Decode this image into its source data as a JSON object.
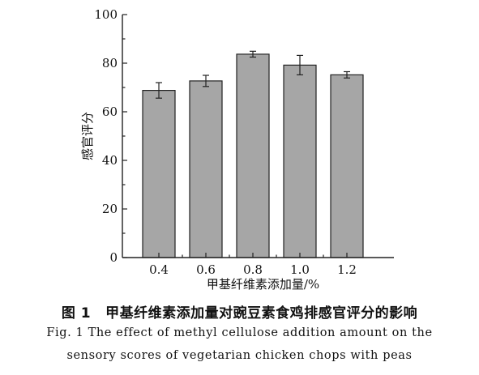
{
  "chart_data": {
    "type": "bar",
    "categories": [
      "0.4",
      "0.6",
      "0.8",
      "1.0",
      "1.2"
    ],
    "values": [
      68.8,
      72.7,
      83.7,
      79.2,
      75.2
    ],
    "errors": [
      3.2,
      2.3,
      1.2,
      4.0,
      1.3
    ],
    "xlabel": "甲基纤维素添加量/%",
    "ylabel": "感官评分",
    "ylim": [
      0,
      100
    ],
    "yticks": [
      "0",
      "20",
      "40",
      "60",
      "80",
      "100"
    ],
    "grid": false,
    "bar_color": "#a6a6a6"
  },
  "caption": {
    "cn_label": "图 1",
    "cn_text": "甲基纤维素添加量对豌豆素食鸡排感官评分的影响",
    "en_line1": "Fig. 1 The effect of methyl cellulose addition amount on the",
    "en_line2": "sensory scores of vegetarian chicken chops with peas"
  }
}
